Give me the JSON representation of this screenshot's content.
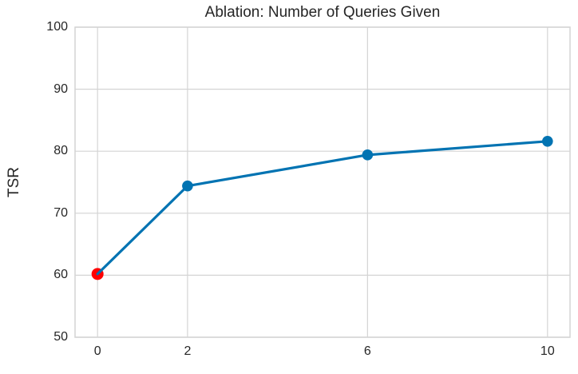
{
  "chart_data": {
    "type": "line",
    "title": "Ablation: Number of Queries Given",
    "xlabel": "",
    "ylabel": "TSR",
    "x": [
      0,
      2,
      6,
      10
    ],
    "values": [
      60.2,
      74.4,
      79.4,
      81.6
    ],
    "point_colors": [
      "#ff0000",
      "#0173b2",
      "#0173b2",
      "#0173b2"
    ],
    "line_color": "#0173b2",
    "marker_color": "#0173b2",
    "highlight_point": {
      "x": 0,
      "value": 60.2,
      "color": "#ff0000"
    },
    "xlim": [
      -0.5,
      10.5
    ],
    "ylim": [
      50,
      100
    ],
    "xticks": [
      0,
      2,
      6,
      10
    ],
    "yticks": [
      50,
      60,
      70,
      80,
      90,
      100
    ],
    "grid": true,
    "grid_color": "#d4d4d4",
    "frame_color": "#d4d4d4",
    "text_color": "#262626",
    "legend": "none"
  }
}
